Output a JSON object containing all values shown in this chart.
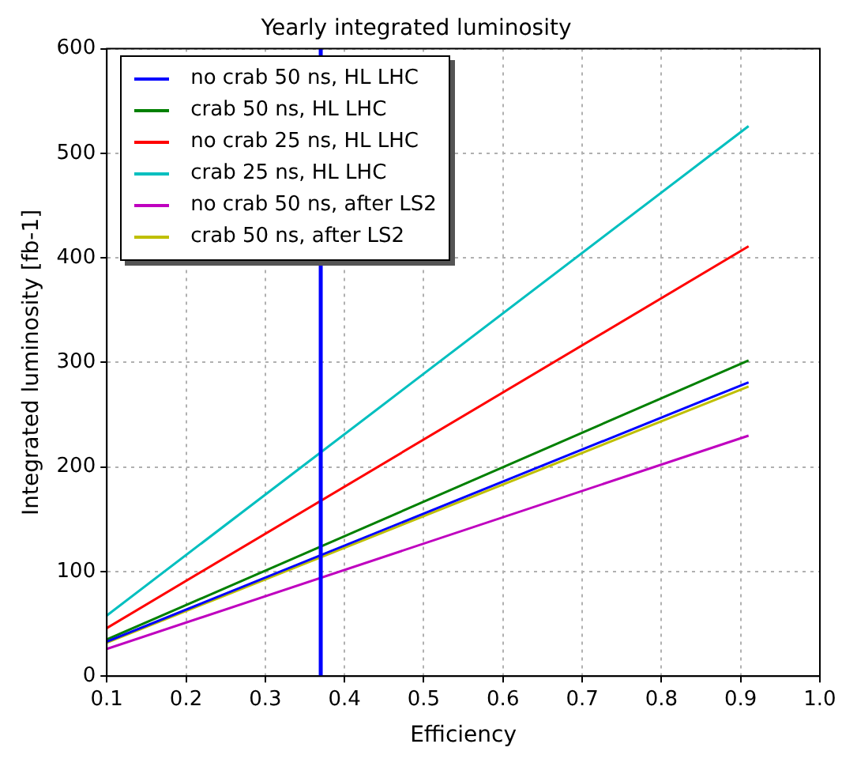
{
  "chart_data": {
    "type": "line",
    "title": "Yearly integrated luminosity",
    "xlabel": "Efficiency",
    "ylabel": "Integrated luminosity [fb-1]",
    "x": [
      0.1,
      0.91
    ],
    "series": [
      {
        "name": "no crab 50 ns, HL LHC",
        "color": "#0000ff",
        "values": [
          33,
          281
        ]
      },
      {
        "name": "crab 50 ns, HL LHC",
        "color": "#008000",
        "values": [
          35,
          302
        ]
      },
      {
        "name": "no crab 25 ns, HL LHC",
        "color": "#ff0000",
        "values": [
          46,
          411
        ]
      },
      {
        "name": "crab 25 ns, HL LHC",
        "color": "#00bfbf",
        "values": [
          58,
          526
        ]
      },
      {
        "name": "no crab 50 ns, after LS2",
        "color": "#bf00bf",
        "values": [
          26,
          230
        ]
      },
      {
        "name": "crab 50 ns, after LS2",
        "color": "#bfbf00",
        "values": [
          32,
          277
        ]
      }
    ],
    "ref_lines": [
      {
        "axis": "x",
        "value": 0.37,
        "color": "#0000ff"
      }
    ],
    "xlim": [
      0.1,
      1.0
    ],
    "xticks": [
      0.1,
      0.2,
      0.3,
      0.4,
      0.5,
      0.6,
      0.7,
      0.8,
      0.9,
      {
        "value": 1,
        "label": "1.0"
      }
    ],
    "ylim": [
      0,
      600
    ],
    "yticks": [
      0,
      100,
      200,
      300,
      400,
      500,
      600
    ],
    "grid": true,
    "legend": "top left",
    "marker": "none",
    "line_style": "solid"
  }
}
